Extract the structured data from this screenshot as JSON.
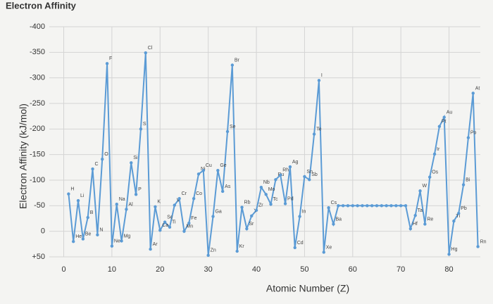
{
  "chart_data": {
    "type": "line",
    "title": "Electron Affinity",
    "x_label": "Atomic Number (Z)",
    "y_label": "Electron Affinity (kJ/mol)",
    "x": [
      1,
      2,
      3,
      4,
      5,
      6,
      7,
      8,
      9,
      10,
      11,
      12,
      13,
      14,
      15,
      16,
      17,
      18,
      19,
      20,
      21,
      22,
      23,
      24,
      25,
      26,
      27,
      28,
      29,
      30,
      31,
      32,
      33,
      34,
      35,
      36,
      37,
      38,
      39,
      40,
      41,
      42,
      43,
      44,
      45,
      46,
      47,
      48,
      49,
      50,
      51,
      52,
      53,
      54,
      55,
      56,
      57,
      58,
      59,
      60,
      61,
      62,
      63,
      64,
      65,
      66,
      67,
      68,
      69,
      70,
      71,
      72,
      73,
      74,
      75,
      76,
      77,
      78,
      79,
      80,
      81,
      82,
      83,
      84,
      85,
      86
    ],
    "values": [
      -73,
      20,
      -60,
      15,
      -27,
      -122,
      7,
      -141,
      -328,
      29,
      -53,
      19,
      -43,
      -134,
      -72,
      -200,
      -349,
      35,
      -48,
      -2,
      -18,
      -8,
      -51,
      -64,
      0,
      -16,
      -64,
      -112,
      -119,
      47,
      -29,
      -119,
      -78,
      -195,
      -325,
      39,
      -47,
      -5,
      -30,
      -41,
      -86,
      -72,
      -53,
      -101,
      -110,
      -54,
      -126,
      32,
      -29,
      -107,
      -101,
      -190,
      -295,
      41,
      -46,
      -14,
      -50,
      -50,
      -50,
      -50,
      -50,
      -50,
      -50,
      -50,
      -50,
      -50,
      -50,
      -50,
      -50,
      -50,
      -50,
      -5,
      -31,
      -79,
      -14,
      -106,
      -151,
      -205,
      -223,
      45,
      -20,
      -35,
      -91,
      -183,
      -270,
      30
    ],
    "point_labels": [
      "H",
      "He",
      "Li",
      "Be",
      "B",
      "C",
      "N",
      "O",
      "F",
      "Ne",
      "Na",
      "Mg",
      "Al",
      "Si",
      "P",
      "S",
      "Cl",
      "Ar",
      "K",
      "Ca",
      "Sc",
      "Ti",
      "V",
      "Cr",
      "Mn",
      "Fe",
      "Co",
      "Ni",
      "Cu",
      "Zn",
      "Ga",
      "Ge",
      "As",
      "Se",
      "Br",
      "Kr",
      "Rb",
      "Sr",
      "Y",
      "Zr",
      "Nb",
      "Mo",
      "Tc",
      "Ru",
      "Rh",
      "Pd",
      "Ag",
      "Cd",
      "In",
      "Sn",
      "Sb",
      "Te",
      "I",
      "Xe",
      "Cs",
      "Ba",
      null,
      null,
      null,
      null,
      null,
      null,
      null,
      null,
      null,
      null,
      null,
      null,
      null,
      null,
      null,
      "Hf",
      "Ta",
      "W",
      "Re",
      "Os",
      "Ir",
      "Pt",
      "Au",
      "Hg",
      "Tl",
      "Pb",
      "Bi",
      "Po",
      "At",
      "Rn"
    ],
    "color": "#5b9bd5",
    "xlim": [
      -3,
      86.5
    ],
    "xticks": [
      0,
      10,
      20,
      30,
      40,
      50,
      60,
      70,
      80
    ],
    "ylim": [
      -400,
      50
    ],
    "y_inverted": true,
    "yticks": [
      -400,
      -350,
      -300,
      -250,
      -200,
      -150,
      -100,
      -50,
      0,
      {
        "value": 50,
        "label": "+50"
      }
    ],
    "grid": true
  }
}
